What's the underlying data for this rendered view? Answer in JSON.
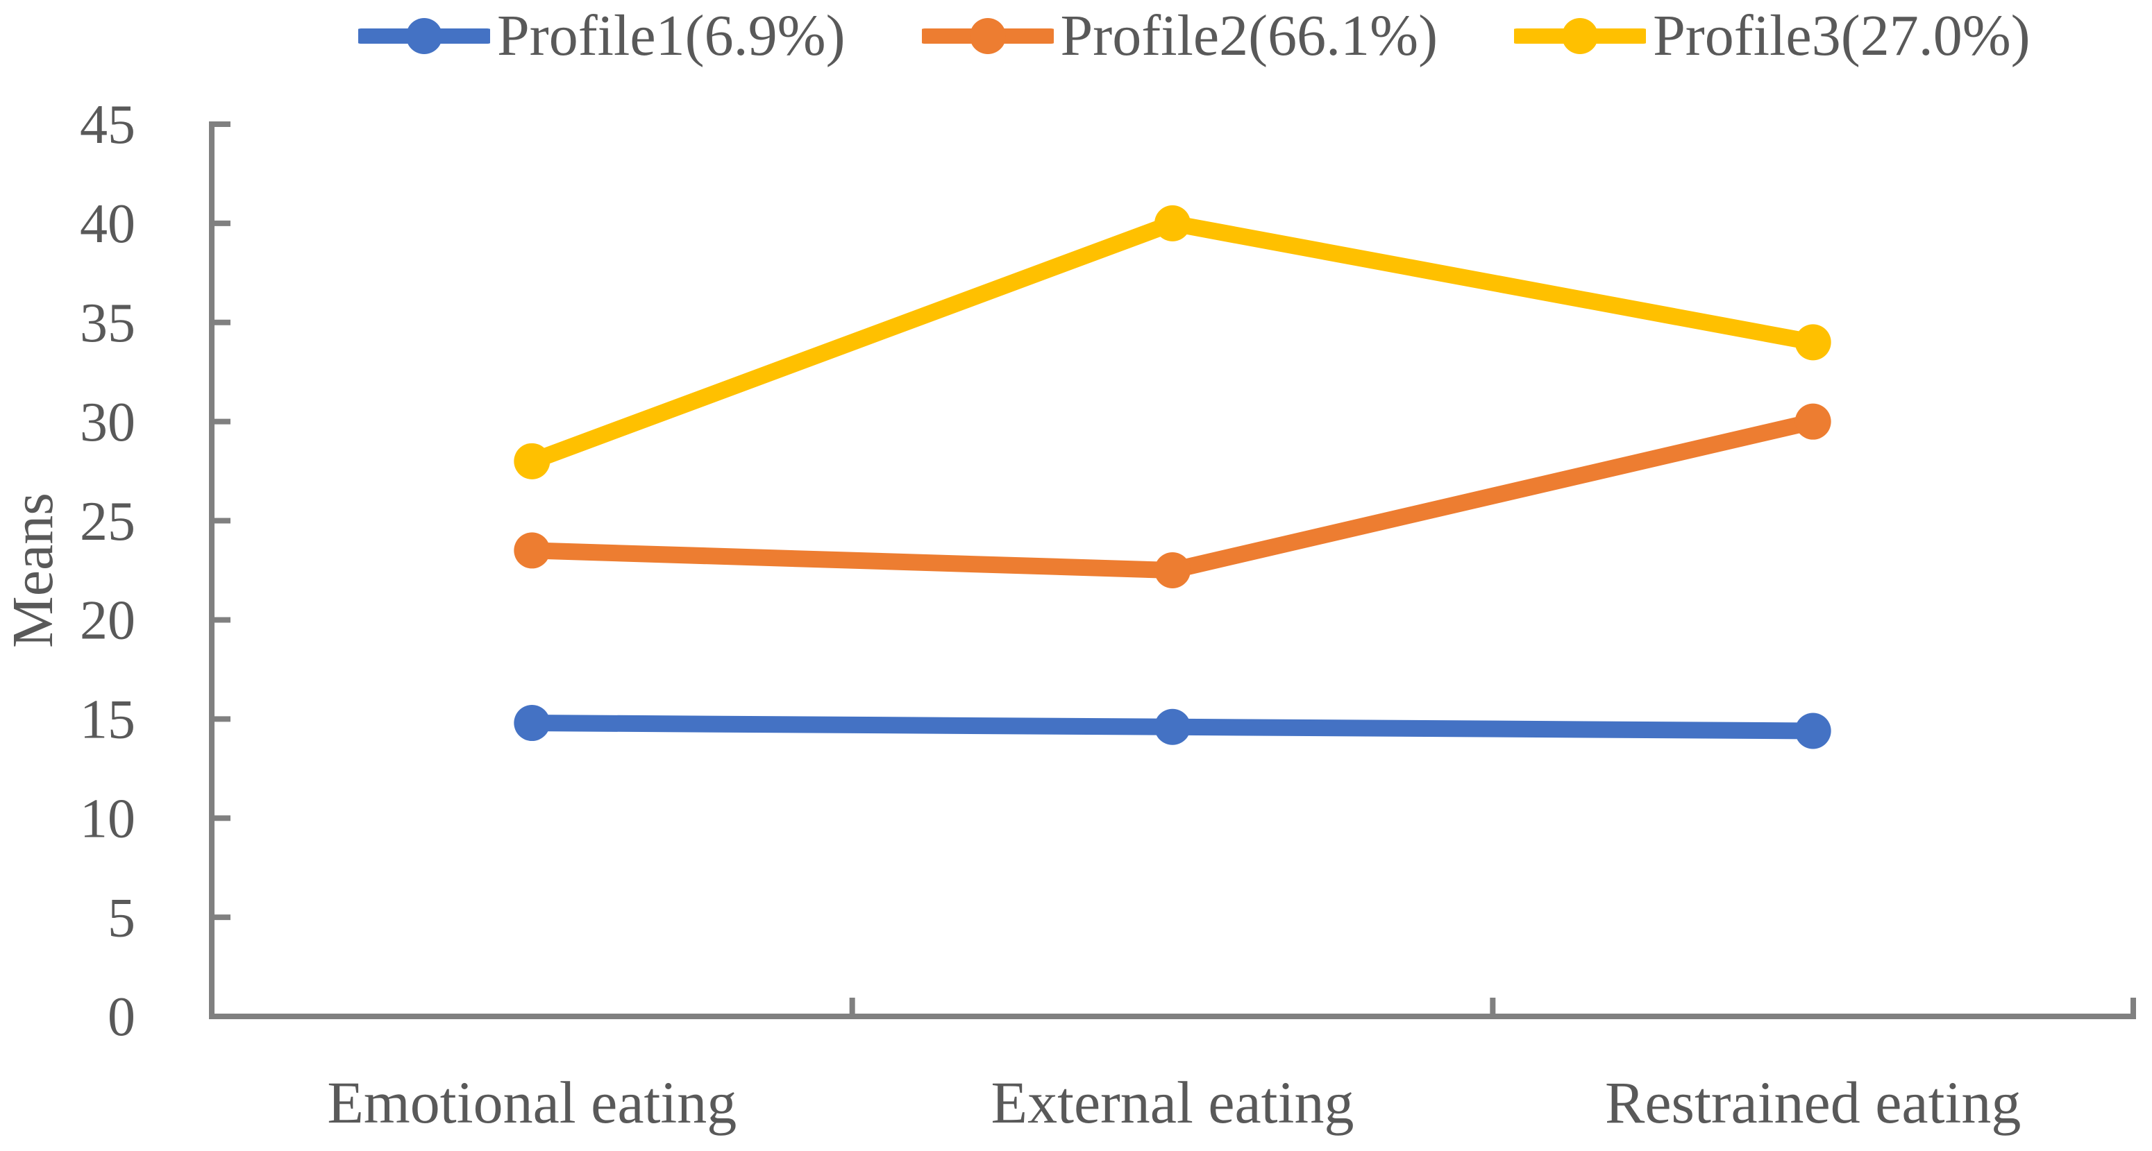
{
  "figure": {
    "background": "#FFFFFF",
    "axis_color": "#808080",
    "text_color": "#595959"
  },
  "legend": {
    "position": "top",
    "marker_shape": "line-with-circle"
  },
  "chart_data": {
    "type": "line",
    "title": "",
    "xlabel": "",
    "ylabel": "Means",
    "categories": [
      "Emotional eating",
      "External eating",
      "Restrained eating"
    ],
    "series": [
      {
        "name": "Profile1(6.9%)",
        "color": "#4472C4",
        "values": [
          14.8,
          14.6,
          14.4
        ]
      },
      {
        "name": "Profile2(66.1%)",
        "color": "#ED7D31",
        "values": [
          23.5,
          22.5,
          30
        ]
      },
      {
        "name": "Profile3(27.0%)",
        "color": "#FFC000",
        "values": [
          28,
          40,
          34
        ]
      }
    ],
    "ylim": [
      0,
      45
    ],
    "ytick_step": 5,
    "yticks": [
      0,
      5,
      10,
      15,
      20,
      25,
      30,
      35,
      40,
      45
    ],
    "grid": false,
    "legend_position": "top",
    "marker": "circle"
  }
}
